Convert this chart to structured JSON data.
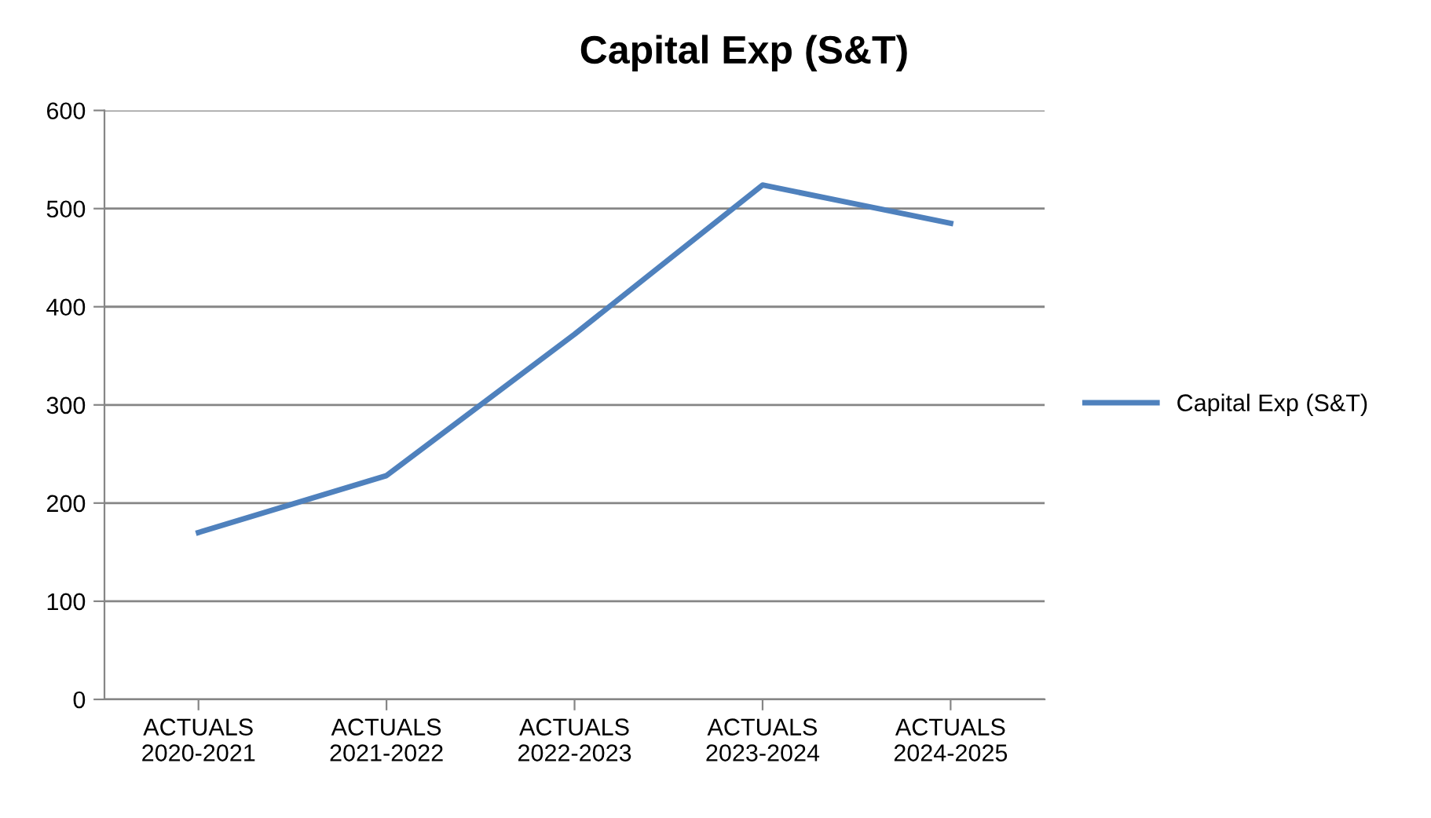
{
  "chart_data": {
    "type": "line",
    "title": "Capital Exp (S&T)",
    "categories": [
      "ACTUALS\n2020-2021",
      "ACTUALS\n2021-2022",
      "ACTUALS\n2022-2023",
      "ACTUALS\n2023-2024",
      "ACTUALS\n2024-2025"
    ],
    "series": [
      {
        "name": "Capital Exp (S&T)",
        "color": "#4f81bd",
        "values": [
          170,
          228,
          372,
          524,
          485
        ]
      }
    ],
    "ylim": [
      0,
      600
    ],
    "yticks": [
      0,
      100,
      200,
      300,
      400,
      500,
      600
    ],
    "grid": "y",
    "legend": "right",
    "marker": "none",
    "line_style": "solid"
  }
}
